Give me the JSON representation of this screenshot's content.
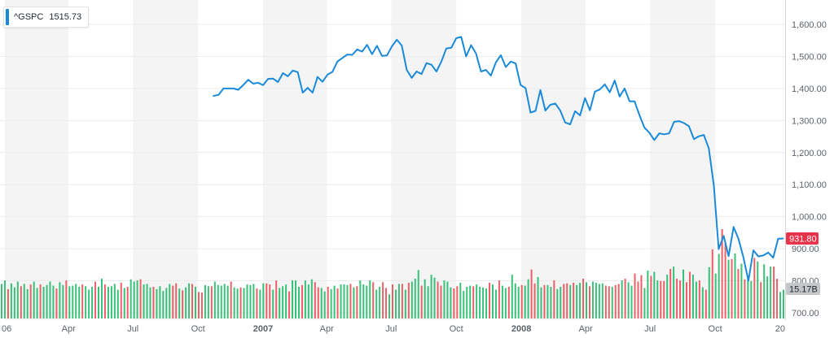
{
  "legend": {
    "symbol": "^GSPC",
    "value": "1515.73",
    "color": "#1a8ad8"
  },
  "chart_data": {
    "type": "line",
    "price": {
      "name": "^GSPC",
      "color": "#1a8ad8",
      "ylim": [
        690,
        1655
      ],
      "y_ticks": [
        700,
        800,
        900,
        1000,
        1100,
        1200,
        1300,
        1400,
        1500,
        1600
      ],
      "y_tick_labels": [
        "700.00",
        "800.00",
        "900.00",
        "1,000.00",
        "1,100.00",
        "1,200.00",
        "1,300.00",
        "1,400.00",
        "1,500.00",
        "1,600.00"
      ],
      "x": [
        "2006-10-23",
        "2006-10-30",
        "2006-11-06",
        "2006-11-13",
        "2006-11-20",
        "2006-11-27",
        "2006-12-04",
        "2006-12-11",
        "2006-12-18",
        "2006-12-25",
        "2007-01-01",
        "2007-01-08",
        "2007-01-15",
        "2007-01-22",
        "2007-01-29",
        "2007-02-05",
        "2007-02-12",
        "2007-02-19",
        "2007-02-26",
        "2007-03-05",
        "2007-03-12",
        "2007-03-19",
        "2007-03-26",
        "2007-04-02",
        "2007-04-09",
        "2007-04-16",
        "2007-04-23",
        "2007-04-30",
        "2007-05-07",
        "2007-05-14",
        "2007-05-21",
        "2007-05-28",
        "2007-06-04",
        "2007-06-11",
        "2007-06-18",
        "2007-06-25",
        "2007-07-02",
        "2007-07-09",
        "2007-07-16",
        "2007-07-23",
        "2007-07-30",
        "2007-08-06",
        "2007-08-13",
        "2007-08-20",
        "2007-08-27",
        "2007-09-03",
        "2007-09-10",
        "2007-09-17",
        "2007-09-24",
        "2007-10-01",
        "2007-10-08",
        "2007-10-15",
        "2007-10-22",
        "2007-10-29",
        "2007-11-05",
        "2007-11-12",
        "2007-11-19",
        "2007-11-26",
        "2007-12-03",
        "2007-12-10",
        "2007-12-17",
        "2007-12-24",
        "2007-12-31",
        "2008-01-07",
        "2008-01-14",
        "2008-01-21",
        "2008-01-28",
        "2008-02-04",
        "2008-02-11",
        "2008-02-18",
        "2008-02-25",
        "2008-03-03",
        "2008-03-10",
        "2008-03-17",
        "2008-03-24",
        "2008-03-31",
        "2008-04-07",
        "2008-04-14",
        "2008-04-21",
        "2008-04-28",
        "2008-05-05",
        "2008-05-12",
        "2008-05-19",
        "2008-05-26",
        "2008-06-02",
        "2008-06-09",
        "2008-06-16",
        "2008-06-23",
        "2008-06-30",
        "2008-07-07",
        "2008-07-14",
        "2008-07-21",
        "2008-07-28",
        "2008-08-04",
        "2008-08-11",
        "2008-08-18",
        "2008-08-25",
        "2008-09-01",
        "2008-09-08",
        "2008-09-15",
        "2008-09-22",
        "2008-09-29",
        "2008-10-06",
        "2008-10-13",
        "2008-10-20",
        "2008-10-27",
        "2008-11-03",
        "2008-11-10",
        "2008-11-17",
        "2008-11-24",
        "2008-12-01",
        "2008-12-08",
        "2008-12-15",
        "2008-12-22",
        "2008-12-29",
        "2009-01-05"
      ],
      "values": [
        1377,
        1380,
        1400,
        1400,
        1400,
        1396,
        1411,
        1427,
        1415,
        1418,
        1410,
        1430,
        1431,
        1420,
        1448,
        1438,
        1456,
        1451,
        1387,
        1402,
        1387,
        1436,
        1421,
        1443,
        1452,
        1484,
        1495,
        1506,
        1505,
        1522,
        1515,
        1536,
        1507,
        1533,
        1502,
        1503,
        1531,
        1552,
        1534,
        1458,
        1433,
        1453,
        1445,
        1479,
        1474,
        1453,
        1484,
        1525,
        1527,
        1557,
        1561,
        1500,
        1535,
        1509,
        1453,
        1458,
        1440,
        1481,
        1504,
        1467,
        1484,
        1478,
        1411,
        1401,
        1325,
        1330,
        1395,
        1331,
        1349,
        1353,
        1331,
        1294,
        1288,
        1329,
        1316,
        1370,
        1332,
        1390,
        1397,
        1413,
        1388,
        1425,
        1375,
        1400,
        1360,
        1360,
        1317,
        1278,
        1262,
        1239,
        1260,
        1257,
        1260,
        1296,
        1298,
        1292,
        1282,
        1242,
        1251,
        1255,
        1213,
        1099,
        899,
        940,
        877,
        968,
        930,
        873,
        800,
        895,
        876,
        879,
        888,
        872,
        931,
        932
      ],
      "last_value": "931.80",
      "last_color": "#e8334a"
    },
    "volume": {
      "unit": "B",
      "last_label": "15.17B",
      "up_color": "#22bb6a",
      "down_color": "#ea4f56",
      "values": [
        6.0,
        6.6,
        5.1,
        6.1,
        5.4,
        6.4,
        5.6,
        6.0,
        5.1,
        5.9,
        6.4,
        5.3,
        5.9,
        5.5,
        5.8,
        6.4,
        5.7,
        5.2,
        6.3,
        5.8,
        6.6,
        5.6,
        5.7,
        6.0,
        5.5,
        5.9,
        5.6,
        5.0,
        5.5,
        6.4,
        5.5,
        6.9,
        5.9,
        5.5,
        5.6,
        6.0,
        5.0,
        6.2,
        5.3,
        5.5,
        6.8,
        6.4,
        6.6,
        6.8,
        5.9,
        6.0,
        5.4,
        5.5,
        5.1,
        5.6,
        4.8,
        5.3,
        6.0,
        5.7,
        6.1,
        5.2,
        4.9,
        5.4,
        6.1,
        6.0,
        5.5,
        4.6,
        4.5,
        5.8,
        5.6,
        5.6,
        6.4,
        5.8,
        5.7,
        6.0,
        5.7,
        6.4,
        5.4,
        5.2,
        5.4,
        5.3,
        5.9,
        5.8,
        6.0,
        5.2,
        5.0,
        6.1,
        6.1,
        5.9,
        5.0,
        6.6,
        5.3,
        5.6,
        5.9,
        4.7,
        6.6,
        6.6,
        5.5,
        5.8,
        6.6,
        5.9,
        6.8,
        6.3,
        5.4,
        5.3,
        4.7,
        5.5,
        5.1,
        5.7,
        5.2,
        5.9,
        5.9,
        5.8,
        6.0,
        5.4,
        5.6,
        6.6,
        5.9,
        5.7,
        6.6,
        6.3,
        5.0,
        5.5,
        6.3,
        5.3,
        4.2,
        5.9,
        5.0,
        6.0,
        6.0,
        5.0,
        6.2,
        6.4,
        6.9,
        8.4,
        5.7,
        6.8,
        5.6,
        7.6,
        7.1,
        6.4,
        5.7,
        6.6,
        6.4,
        5.4,
        5.2,
        5.6,
        6.2,
        4.8,
        5.5,
        5.7,
        5.6,
        5.9,
        5.5,
        5.4,
        5.2,
        6.2,
        5.9,
        5.0,
        6.6,
        5.7,
        5.3,
        5.5,
        7.6,
        6.1,
        5.5,
        5.8,
        5.7,
        6.8,
        8.5,
        6.1,
        7.2,
        5.4,
        5.8,
        5.8,
        5.5,
        6.6,
        5.1,
        5.5,
        6.0,
        6.1,
        5.8,
        6.2,
        5.8,
        6.2,
        6.9,
        6.3,
        5.6,
        6.4,
        6.2,
        6.0,
        6.1,
        5.7,
        5.6,
        5.5,
        5.8,
        6.0,
        6.6,
        6.9,
        6.3,
        5.7,
        7.8,
        6.4,
        7.5,
        5.3,
        8.3,
        7.4,
        8.1,
        6.6,
        6.5,
        6.5,
        7.6,
        8.6,
        9.0,
        6.9,
        6.6,
        8.5,
        6.3,
        8.1,
        7.6,
        6.4,
        6.6,
        5.4,
        5.0,
        8.9,
        12.0,
        7.8,
        11.2,
        15.5,
        13.3,
        10.2,
        10.3,
        11.3,
        8.6,
        9.5,
        6.8,
        7.0,
        6.5,
        10.5,
        9.9,
        6.3,
        9.4,
        7.3,
        9.0,
        9.0,
        6.9,
        4.6,
        5.0
      ],
      "up": [
        1,
        1,
        0,
        1,
        1,
        1,
        0,
        1,
        1,
        0,
        1,
        1,
        0,
        1,
        1,
        1,
        1,
        0,
        1,
        1,
        0,
        1,
        1,
        1,
        1,
        0,
        1,
        1,
        1,
        0,
        1,
        1,
        0,
        1,
        1,
        1,
        1,
        0,
        1,
        0,
        1,
        1,
        1,
        0,
        1,
        1,
        1,
        0,
        1,
        1,
        1,
        1,
        1,
        0,
        0,
        1,
        0,
        1,
        1,
        0,
        1,
        0,
        0,
        1,
        1,
        0,
        1,
        1,
        1,
        1,
        1,
        0,
        1,
        1,
        0,
        1,
        1,
        1,
        1,
        0,
        1,
        1,
        0,
        0,
        1,
        0,
        1,
        1,
        1,
        0,
        1,
        1,
        1,
        0,
        1,
        1,
        1,
        0,
        0,
        1,
        1,
        0,
        1,
        1,
        0,
        1,
        1,
        1,
        0,
        1,
        0,
        1,
        1,
        1,
        1,
        0,
        1,
        1,
        0,
        0,
        1,
        0,
        1,
        1,
        0,
        1,
        0,
        1,
        1,
        1,
        0,
        1,
        1,
        1,
        1,
        0,
        0,
        1,
        1,
        1,
        0,
        0,
        1,
        1,
        1,
        1,
        0,
        1,
        1,
        1,
        1,
        0,
        1,
        1,
        0,
        1,
        1,
        0,
        1,
        1,
        1,
        0,
        1,
        1,
        0,
        0,
        1,
        1,
        0,
        1,
        1,
        0,
        1,
        1,
        0,
        0,
        1,
        0,
        1,
        1,
        0,
        1,
        0,
        1,
        1,
        1,
        1,
        0,
        0,
        1,
        0,
        0,
        1,
        0,
        1,
        1,
        0,
        0,
        0,
        1,
        1,
        0,
        1,
        1,
        0,
        0,
        1,
        0,
        1,
        0,
        0,
        1,
        0,
        0,
        1,
        1,
        0,
        1,
        0,
        1,
        0,
        1,
        1,
        0,
        0,
        1,
        0,
        1,
        0,
        1,
        0,
        1,
        1,
        0,
        1,
        0,
        1,
        1,
        1,
        0,
        0,
        1,
        1,
        0,
        0
      ]
    },
    "x_axis": {
      "labels": [
        "06",
        "Apr",
        "Jul",
        "Oct",
        "2007",
        "Apr",
        "Jul",
        "Oct",
        "2008",
        "Apr",
        "Jul",
        "Oct",
        "20"
      ],
      "bold": [
        false,
        false,
        false,
        false,
        true,
        false,
        false,
        false,
        true,
        false,
        false,
        false,
        false
      ]
    },
    "grid": true,
    "shaded_month_bands": true
  }
}
